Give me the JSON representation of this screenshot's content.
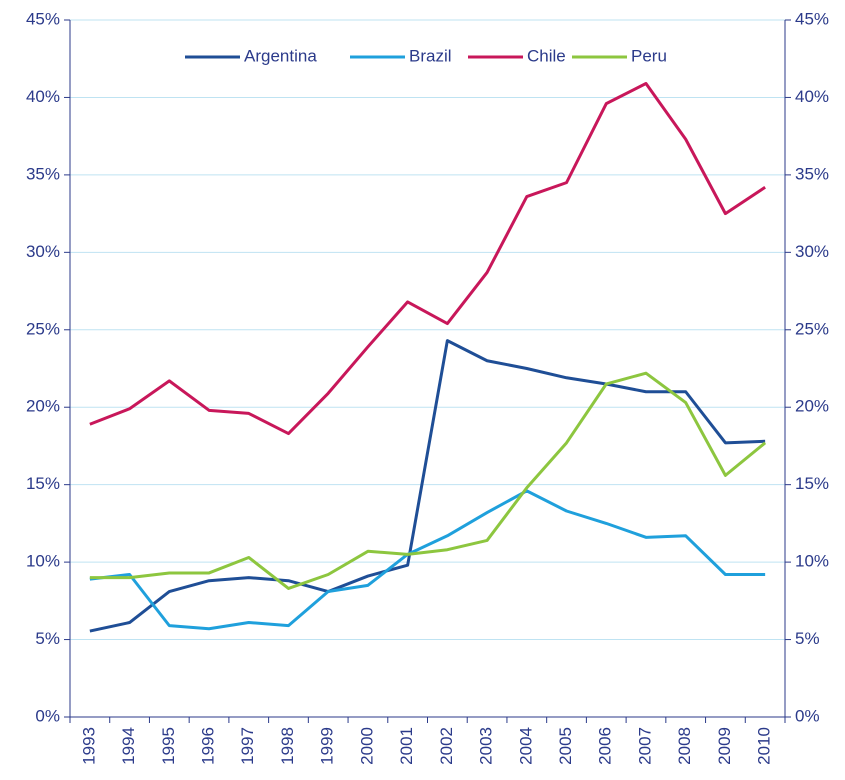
{
  "chart_data": {
    "type": "line",
    "categories": [
      "1993",
      "1994",
      "1995",
      "1996",
      "1997",
      "1998",
      "1999",
      "2000",
      "2001",
      "2002",
      "2003",
      "2004",
      "2005",
      "2006",
      "2007",
      "2008",
      "2009",
      "2010"
    ],
    "series": [
      {
        "name": "Argentina",
        "color": "#1f4e96",
        "values": [
          5.55,
          6.1,
          8.1,
          8.8,
          9.0,
          8.8,
          8.1,
          9.1,
          9.8,
          24.3,
          23.0,
          22.5,
          21.9,
          21.5,
          21.0,
          21.0,
          17.7,
          17.8
        ]
      },
      {
        "name": "Brazil",
        "color": "#1fa0dc",
        "values": [
          8.9,
          9.2,
          5.9,
          5.7,
          6.1,
          5.9,
          8.1,
          8.5,
          10.5,
          11.7,
          13.2,
          14.6,
          13.3,
          12.5,
          11.6,
          11.7,
          9.2,
          9.2
        ]
      },
      {
        "name": "Chile",
        "color": "#c8175a",
        "values": [
          18.9,
          19.9,
          21.7,
          19.8,
          19.6,
          18.3,
          20.9,
          23.9,
          26.8,
          25.4,
          28.7,
          33.6,
          34.5,
          39.6,
          40.9,
          37.3,
          32.5,
          34.2
        ]
      },
      {
        "name": "Peru",
        "color": "#8dc63f",
        "values": [
          9.0,
          9.0,
          9.3,
          9.3,
          10.3,
          8.3,
          9.2,
          10.7,
          10.5,
          10.8,
          11.4,
          14.8,
          17.7,
          21.5,
          22.2,
          20.3,
          15.6,
          17.7
        ]
      }
    ],
    "ylim": [
      0,
      45
    ],
    "yticks": [
      {
        "value": 0,
        "label": "0%"
      },
      {
        "value": 5,
        "label": "5%"
      },
      {
        "value": 10,
        "label": "10%"
      },
      {
        "value": 15,
        "label": "15%"
      },
      {
        "value": 20,
        "label": "20%"
      },
      {
        "value": 25,
        "label": "25%"
      },
      {
        "value": 30,
        "label": "30%"
      },
      {
        "value": 35,
        "label": "35%"
      },
      {
        "value": 40,
        "label": "40%"
      },
      {
        "value": 45,
        "label": "45%"
      }
    ],
    "y2lim": [
      0,
      45
    ],
    "y2ticks": [
      {
        "value": 0,
        "label": "0%"
      },
      {
        "value": 5,
        "label": "5%"
      },
      {
        "value": 10,
        "label": "10%"
      },
      {
        "value": 15,
        "label": "15%"
      },
      {
        "value": 20,
        "label": "20%"
      },
      {
        "value": 25,
        "label": "25%"
      },
      {
        "value": 30,
        "label": "30%"
      },
      {
        "value": 35,
        "label": "35%"
      },
      {
        "value": 40,
        "label": "40%"
      },
      {
        "value": 45,
        "label": "45%"
      }
    ],
    "grid": true,
    "legend": "top"
  }
}
